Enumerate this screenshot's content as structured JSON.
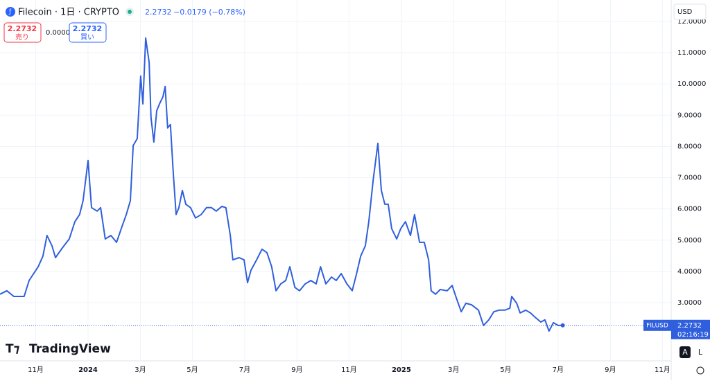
{
  "header": {
    "symbol": "Filecoin · 1日 · CRYPTO",
    "price": "2.2732",
    "change": "−0.0179 (−0.78%)",
    "sell_price": "2.2732",
    "sell_label": "売り",
    "spread": "0.0000",
    "buy_price": "2.2732",
    "buy_label": "買い",
    "currency": "USD",
    "brand": "TradingView",
    "button_auto": "A",
    "button_log": "L"
  },
  "chart_data": {
    "type": "line",
    "color": "#2f5fdc",
    "grid": true,
    "x": [
      2023.719,
      2023.741,
      2023.763,
      2023.796,
      2023.812,
      2023.841,
      2023.856,
      2023.869,
      2023.885,
      2023.896,
      2023.918,
      2023.94,
      2023.958,
      2023.973,
      2023.984,
      2024.0,
      2024.011,
      2024.029,
      2024.04,
      2024.055,
      2024.073,
      2024.091,
      2024.106,
      2024.122,
      2024.135,
      2024.144,
      2024.157,
      2024.168,
      2024.175,
      2024.184,
      2024.195,
      2024.201,
      2024.21,
      2024.219,
      2024.228,
      2024.239,
      2024.246,
      2024.254,
      2024.263,
      2024.272,
      2024.281,
      2024.29,
      2024.301,
      2024.312,
      2024.327,
      2024.343,
      2024.361,
      2024.378,
      2024.394,
      2024.409,
      2024.427,
      2024.44,
      2024.454,
      2024.462,
      2024.482,
      2024.498,
      2024.509,
      2024.52,
      2024.538,
      2024.555,
      2024.571,
      2024.586,
      2024.6,
      2024.615,
      2024.631,
      2024.644,
      2024.66,
      2024.675,
      2024.693,
      2024.711,
      2024.728,
      2024.742,
      2024.759,
      2024.777,
      2024.792,
      2024.808,
      2024.826,
      2024.843,
      2024.857,
      2024.87,
      2024.885,
      2024.896,
      2024.91,
      2024.925,
      2024.936,
      2024.947,
      2024.958,
      2024.969,
      2024.985,
      2024.998,
      2025.013,
      2025.029,
      2025.042,
      2025.058,
      2025.073,
      2025.087,
      2025.095,
      2025.109,
      2025.124,
      2025.146,
      2025.162,
      2025.175,
      2025.191,
      2025.206,
      2025.224,
      2025.246,
      2025.262,
      2025.279,
      2025.295,
      2025.312,
      2025.33,
      2025.346,
      2025.352,
      2025.368,
      2025.379,
      2025.397,
      2025.412,
      2025.427,
      2025.445,
      2025.458,
      2025.471,
      2025.485,
      2025.5,
      2025.515
    ],
    "values": [
      3.27,
      3.38,
      3.2,
      3.2,
      3.71,
      4.15,
      4.49,
      5.15,
      4.82,
      4.44,
      4.75,
      5.04,
      5.59,
      5.82,
      6.26,
      7.55,
      6.04,
      5.93,
      6.04,
      5.04,
      5.15,
      4.93,
      5.37,
      5.82,
      6.26,
      8.03,
      8.25,
      10.25,
      9.36,
      11.47,
      10.69,
      8.92,
      8.14,
      9.14,
      9.36,
      9.59,
      9.92,
      8.59,
      8.7,
      7.15,
      5.82,
      6.04,
      6.59,
      6.15,
      6.04,
      5.71,
      5.82,
      6.04,
      6.04,
      5.93,
      6.08,
      6.04,
      5.15,
      4.37,
      4.44,
      4.37,
      3.64,
      4.04,
      4.37,
      4.71,
      4.6,
      4.15,
      3.38,
      3.6,
      3.71,
      4.15,
      3.49,
      3.38,
      3.6,
      3.71,
      3.6,
      4.15,
      3.6,
      3.82,
      3.71,
      3.93,
      3.6,
      3.38,
      3.93,
      4.49,
      4.82,
      5.59,
      6.92,
      8.1,
      6.59,
      6.15,
      6.15,
      5.37,
      5.04,
      5.37,
      5.59,
      5.15,
      5.82,
      4.93,
      4.93,
      4.37,
      3.38,
      3.27,
      3.42,
      3.38,
      3.55,
      3.16,
      2.71,
      2.98,
      2.93,
      2.76,
      2.27,
      2.45,
      2.71,
      2.76,
      2.76,
      2.82,
      3.2,
      2.98,
      2.67,
      2.76,
      2.67,
      2.53,
      2.38,
      2.45,
      2.09,
      2.36,
      2.27,
      2.2732
    ],
    "xlim": [
      2023.719,
      2025.861
    ],
    "ylim": [
      1.16,
      12.11
    ],
    "xticks": [
      {
        "value": 2023.833,
        "label": "11月"
      },
      2024,
      {
        "value": 2024.167,
        "label": "3月"
      },
      {
        "value": 2024.333,
        "label": "5月"
      },
      {
        "value": 2024.5,
        "label": "7月"
      },
      {
        "value": 2024.667,
        "label": "9月"
      },
      {
        "value": 2024.833,
        "label": "11月"
      },
      2025,
      {
        "value": 2025.167,
        "label": "3月"
      },
      {
        "value": 2025.333,
        "label": "5月"
      },
      {
        "value": 2025.5,
        "label": "7月"
      },
      {
        "value": 2025.667,
        "label": "9月"
      },
      {
        "value": 2025.833,
        "label": "11月"
      }
    ],
    "yticks": [
      {
        "value": 3,
        "label": "3.0000"
      },
      {
        "value": 4,
        "label": "4.0000"
      },
      {
        "value": 5,
        "label": "5.0000"
      },
      {
        "value": 6,
        "label": "6.0000"
      },
      {
        "value": 7,
        "label": "7.0000"
      },
      {
        "value": 8,
        "label": "8.0000"
      },
      {
        "value": 9,
        "label": "9.0000"
      },
      {
        "value": 10,
        "label": "10.0000"
      },
      {
        "value": 11,
        "label": "11.0000"
      },
      {
        "value": 12,
        "label": "12.0000"
      }
    ],
    "price_tag": {
      "symbol": "FILUSD",
      "price": "2.2732",
      "countdown": "02:16:19"
    }
  }
}
